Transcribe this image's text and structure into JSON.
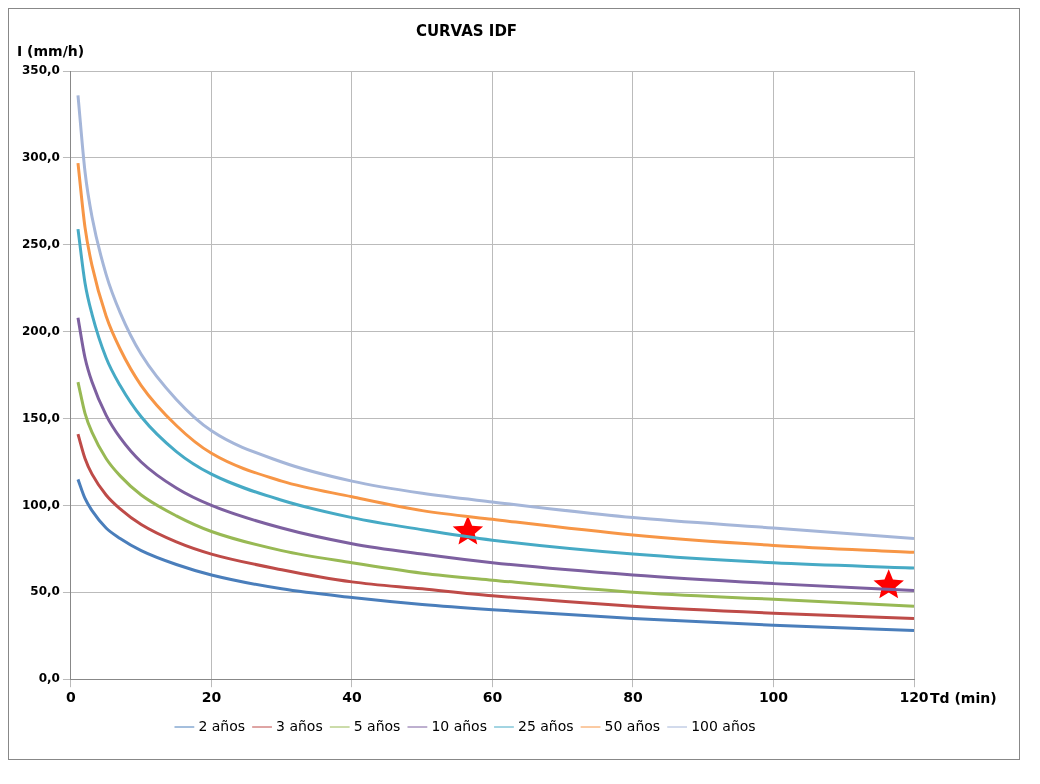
{
  "chart_data": {
    "type": "line",
    "title": "CURVAS IDF",
    "xlabel": "Td (min)",
    "ylabel": "I (mm/h)",
    "x": [
      1,
      2,
      3,
      5,
      7,
      10,
      15,
      20,
      30,
      40,
      50,
      60,
      80,
      100,
      120
    ],
    "series": [
      {
        "name": "2 años",
        "color": "#4a7ebb",
        "values": [
          115,
          104,
          97,
          87,
          81,
          74,
          66,
          60,
          52,
          47,
          43,
          40,
          35,
          31,
          28
        ]
      },
      {
        "name": "3 años",
        "color": "#be4b48",
        "values": [
          141,
          127,
          118,
          106,
          98,
          89,
          79,
          72,
          63,
          56,
          52,
          48,
          42,
          38,
          35
        ]
      },
      {
        "name": "5 años",
        "color": "#98b954",
        "values": [
          171,
          153,
          142,
          127,
          117,
          106,
          94,
          85,
          74,
          67,
          61,
          57,
          50,
          46,
          42
        ]
      },
      {
        "name": "10 años",
        "color": "#7d60a0",
        "values": [
          208,
          185,
          171,
          152,
          139,
          125,
          110,
          100,
          87,
          78,
          72,
          67,
          60,
          55,
          51
        ]
      },
      {
        "name": "25 años",
        "color": "#46aac5",
        "values": [
          259,
          228,
          210,
          185,
          169,
          151,
          131,
          118,
          103,
          93,
          86,
          80,
          72,
          67,
          64
        ]
      },
      {
        "name": "50 años",
        "color": "#f79646",
        "values": [
          297,
          260,
          238,
          209,
          190,
          169,
          146,
          130,
          114,
          105,
          97,
          92,
          83,
          77,
          73
        ]
      },
      {
        "name": "100 años",
        "color": "#a5b6d9",
        "values": [
          336,
          292,
          266,
          233,
          211,
          187,
          161,
          143,
          125,
          114,
          107,
          102,
          93,
          87,
          81
        ]
      },
      {
        "type": "scatter",
        "marker": "star",
        "color": "#ff0000",
        "x": [
          56.5,
          116.4
        ],
        "values": [
          85,
          54
        ]
      }
    ],
    "xlim": [
      0,
      120
    ],
    "xticks": [
      0,
      20,
      40,
      60,
      80,
      100,
      120
    ],
    "ylim": [
      0,
      350
    ],
    "yticks": [
      {
        "value": 0,
        "label": "0,0"
      },
      {
        "value": 50,
        "label": "50,0"
      },
      {
        "value": 100,
        "label": "100,0"
      },
      {
        "value": 150,
        "label": "150,0"
      },
      {
        "value": 200,
        "label": "200,0"
      },
      {
        "value": 250,
        "label": "250,0"
      },
      {
        "value": 300,
        "label": "300,0"
      },
      {
        "value": 350,
        "label": "350,0"
      }
    ],
    "grid": true,
    "legend": "bottom",
    "marker": "none",
    "line_style": "solid"
  }
}
